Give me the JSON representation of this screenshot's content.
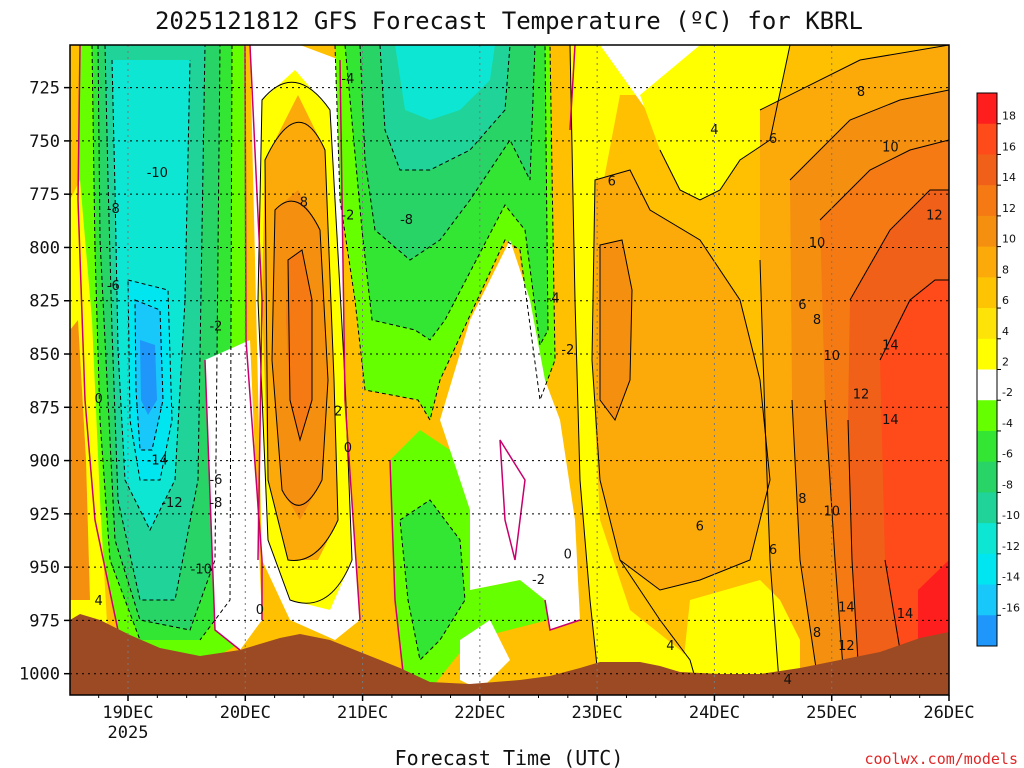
{
  "chart_data": {
    "type": "heatmap",
    "title": "2025121812 GFS Forecast Temperature (ºC) for KBRL",
    "xlabel": "Forecast Time (UTC)",
    "x_ticks": [
      "19DEC",
      "20DEC",
      "21DEC",
      "22DEC",
      "23DEC",
      "24DEC",
      "25DEC",
      "26DEC"
    ],
    "x_subtick": "2025",
    "y_ticks": [
      725,
      750,
      775,
      800,
      825,
      850,
      875,
      900,
      925,
      950,
      975,
      1000
    ],
    "ylim": [
      1010,
      705
    ],
    "y_scale": "pressure (inverted, hPa)",
    "grid": true,
    "colorbar": {
      "levels": [
        18,
        16,
        14,
        12,
        10,
        8,
        6,
        4,
        2,
        -2,
        -4,
        -6,
        -8,
        -10,
        -12,
        -14,
        -16
      ],
      "colors": [
        "#ff1e1e",
        "#ff4a1a",
        "#f06018",
        "#f57a14",
        "#f58f0f",
        "#fcaa0a",
        "#fdc404",
        "#fee308",
        "#ffff00",
        "#ffffff",
        "#66ff00",
        "#33e634",
        "#29d466",
        "#1fd399",
        "#0ce6d2",
        "#00e6f0",
        "#19c8fa",
        "#1e96fa"
      ]
    },
    "contour_labels": [
      {
        "text": "-4",
        "time": "20DEC 21Z",
        "p": 721
      },
      {
        "text": "-10",
        "time": "19DEC 06Z",
        "p": 765
      },
      {
        "text": "-8",
        "time": "18DEC 21Z",
        "p": 782
      },
      {
        "text": "8",
        "time": "20DEC 12Z",
        "p": 779
      },
      {
        "text": "-2",
        "time": "20DEC 21Z",
        "p": 785
      },
      {
        "text": "-8",
        "time": "21DEC 09Z",
        "p": 787
      },
      {
        "text": "-6",
        "time": "18DEC 21Z",
        "p": 818
      },
      {
        "text": "-2",
        "time": "19DEC 18Z",
        "p": 837
      },
      {
        "text": "0",
        "time": "18DEC 18Z",
        "p": 871
      },
      {
        "text": "2",
        "time": "20DEC 19Z",
        "p": 877
      },
      {
        "text": "0",
        "time": "20DEC 21Z",
        "p": 894
      },
      {
        "text": "-14",
        "time": "19DEC 06Z",
        "p": 900
      },
      {
        "text": "-6",
        "time": "19DEC 18Z",
        "p": 909
      },
      {
        "text": "-12",
        "time": "19DEC 09Z",
        "p": 920
      },
      {
        "text": "-8",
        "time": "19DEC 18Z",
        "p": 920
      },
      {
        "text": "-10",
        "time": "19DEC 15Z",
        "p": 951
      },
      {
        "text": "0",
        "time": "20DEC 03Z",
        "p": 970
      },
      {
        "text": "4",
        "time": "18DEC 18Z",
        "p": 966
      },
      {
        "text": "-4",
        "time": "22DEC 15Z",
        "p": 824
      },
      {
        "text": "-2",
        "time": "22DEC 18Z",
        "p": 848
      },
      {
        "text": "0",
        "time": "22DEC 18Z",
        "p": 944
      },
      {
        "text": "-2",
        "time": "22DEC 12Z",
        "p": 956
      },
      {
        "text": "6",
        "time": "23DEC 03Z",
        "p": 769
      },
      {
        "text": "4",
        "time": "24DEC 00Z",
        "p": 745
      },
      {
        "text": "6",
        "time": "24DEC 12Z",
        "p": 749
      },
      {
        "text": "8",
        "time": "25DEC 06Z",
        "p": 727
      },
      {
        "text": "10",
        "time": "25DEC 12Z",
        "p": 753
      },
      {
        "text": "12",
        "time": "25DEC 21Z",
        "p": 785
      },
      {
        "text": "10",
        "time": "24DEC 21Z",
        "p": 798
      },
      {
        "text": "6",
        "time": "24DEC 18Z",
        "p": 827
      },
      {
        "text": "8",
        "time": "24DEC 21Z",
        "p": 834
      },
      {
        "text": "14",
        "time": "25DEC 12Z",
        "p": 846
      },
      {
        "text": "10",
        "time": "25DEC 00Z",
        "p": 851
      },
      {
        "text": "12",
        "time": "25DEC 06Z",
        "p": 869
      },
      {
        "text": "14",
        "time": "25DEC 12Z",
        "p": 881
      },
      {
        "text": "8",
        "time": "24DEC 18Z",
        "p": 918
      },
      {
        "text": "10",
        "time": "25DEC 00Z",
        "p": 924
      },
      {
        "text": "6",
        "time": "23DEC 21Z",
        "p": 931
      },
      {
        "text": "6",
        "time": "24DEC 12Z",
        "p": 942
      },
      {
        "text": "4",
        "time": "23DEC 15Z",
        "p": 987
      },
      {
        "text": "8",
        "time": "24DEC 21Z",
        "p": 981
      },
      {
        "text": "12",
        "time": "25DEC 03Z",
        "p": 987
      },
      {
        "text": "14",
        "time": "25DEC 03Z",
        "p": 969
      },
      {
        "text": "14",
        "time": "25DEC 15Z",
        "p": 972
      },
      {
        "text": "4",
        "time": "24DEC 15Z",
        "p": 1003
      }
    ]
  },
  "credit": "coolwx.com/models",
  "colors": {
    "terrain": "#9c4a24",
    "zero_contour": "#c8006e",
    "contour": "#000000",
    "frame": "#000000"
  }
}
